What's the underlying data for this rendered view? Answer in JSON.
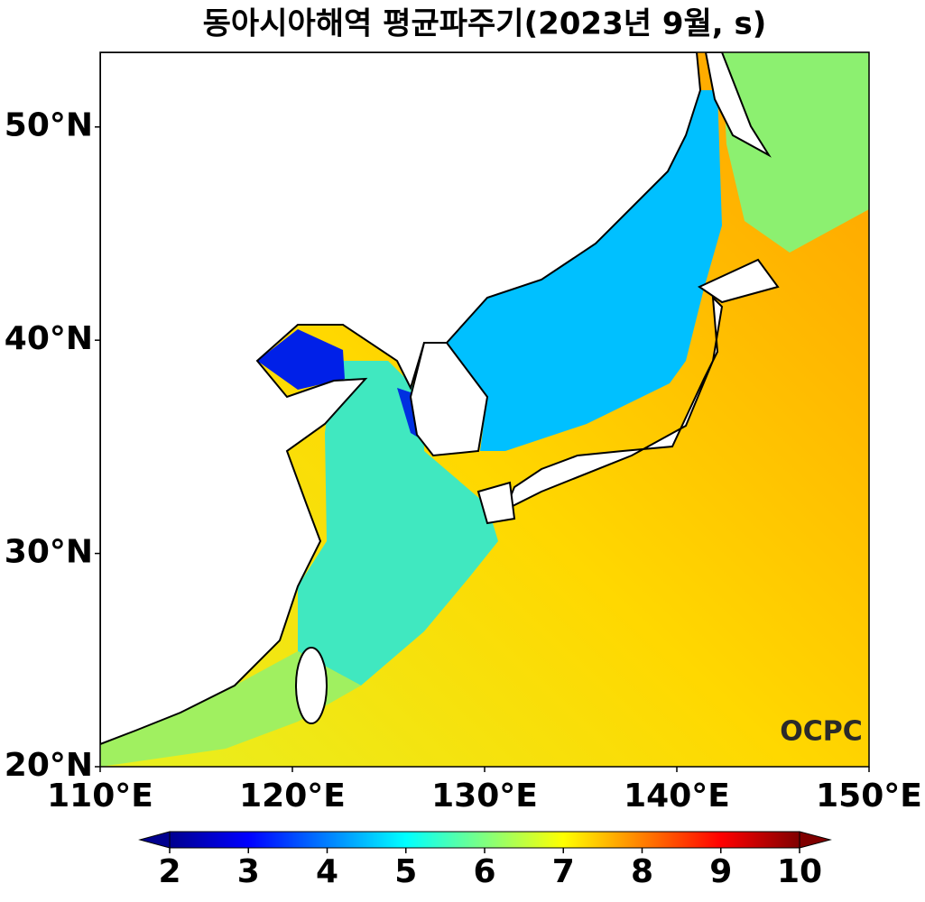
{
  "chart_data": {
    "type": "map",
    "title": "동아시아해역 평균파주기(2023년 9월, s)",
    "xlim": [
      110,
      150
    ],
    "ylim": [
      20,
      53.5
    ],
    "xticks": [
      {
        "value": 110,
        "label": "110°E"
      },
      {
        "value": 120,
        "label": "120°E"
      },
      {
        "value": 130,
        "label": "130°E"
      },
      {
        "value": 140,
        "label": "140°E"
      },
      {
        "value": 150,
        "label": "150°E"
      }
    ],
    "yticks": [
      {
        "value": 20,
        "label": "20°N"
      },
      {
        "value": 30,
        "label": "30°N"
      },
      {
        "value": 40,
        "label": "40°N"
      },
      {
        "value": 50,
        "label": "50°N"
      }
    ],
    "colorbar": {
      "lim": [
        2,
        10
      ],
      "ticks": [
        2,
        3,
        4,
        5,
        6,
        7,
        8,
        9,
        10
      ]
    }
  },
  "logo": "OCPC"
}
